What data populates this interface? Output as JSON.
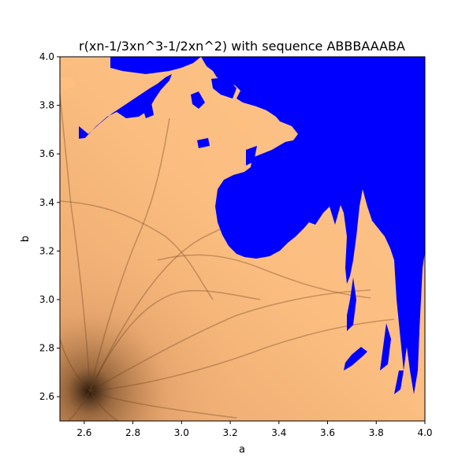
{
  "chart_data": {
    "type": "heatmap",
    "title": "r(xn-1/3xn^3-1/2xn^2) with sequence ABBBAAABA",
    "xlabel": "a",
    "ylabel": "b",
    "xlim": [
      2.5,
      4.0
    ],
    "ylim": [
      2.5,
      4.0
    ],
    "xticks": [
      "2.6",
      "2.8",
      "3.0",
      "3.2",
      "3.4",
      "3.6",
      "3.8",
      "4.0"
    ],
    "yticks": [
      "2.6",
      "2.8",
      "3.0",
      "3.2",
      "3.4",
      "3.6",
      "3.8",
      "4.0"
    ],
    "colormap": "copper",
    "chaotic_region_color": "#0000ff",
    "stable_region_color": "#ffbf7f",
    "grid": false
  }
}
